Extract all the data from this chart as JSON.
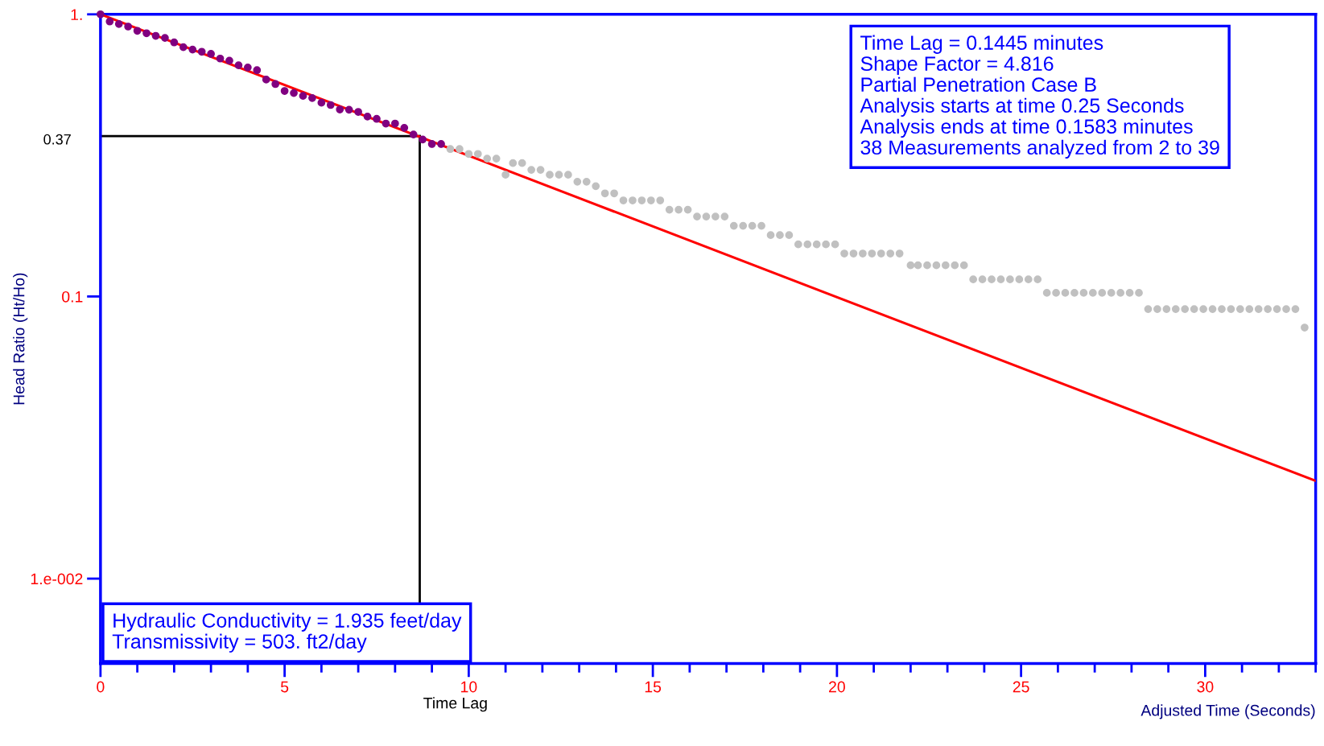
{
  "chart_data": {
    "type": "scatter",
    "xlabel": "Adjusted Time (Seconds)",
    "ylabel": "Head Ratio (Ht/Ho)",
    "log": "y",
    "xlim": [
      0,
      33
    ],
    "ylim": [
      0.005,
      1
    ],
    "xticks": [
      0,
      5,
      10,
      15,
      20,
      25,
      30
    ],
    "yticks": [
      {
        "value": 0.01,
        "label": "1.e-002"
      },
      {
        "value": 0.1,
        "label": "0.1"
      },
      {
        "value": 1,
        "label": "1."
      }
    ],
    "grid": false,
    "marker": "circle",
    "series": [
      {
        "color": "#800080",
        "x": [
          0,
          0.25,
          0.5,
          0.75,
          1,
          1.25,
          1.5,
          1.75,
          2,
          2.25,
          2.5,
          2.75,
          3,
          3.25,
          3.5,
          3.75,
          4,
          4.25,
          4.5,
          4.75,
          5,
          5.25,
          5.5,
          5.75,
          6,
          6.25,
          6.5,
          6.75,
          7,
          7.25,
          7.5,
          7.75,
          8,
          8.25,
          8.5,
          8.75,
          9,
          9.25
        ],
        "values": [
          1.0,
          0.943,
          0.924,
          0.905,
          0.874,
          0.857,
          0.839,
          0.825,
          0.795,
          0.765,
          0.75,
          0.737,
          0.724,
          0.697,
          0.685,
          0.66,
          0.648,
          0.634,
          0.587,
          0.566,
          0.535,
          0.526,
          0.514,
          0.505,
          0.486,
          0.477,
          0.46,
          0.459,
          0.451,
          0.434,
          0.426,
          0.41,
          0.41,
          0.396,
          0.375,
          0.36,
          0.347,
          0.347
        ]
      },
      {
        "color": "#c0c0c0",
        "x": [
          9.5,
          9.75,
          10,
          10.25,
          10.5,
          10.75,
          11,
          11.2,
          11.45,
          11.7,
          11.95,
          12.2,
          12.45,
          12.7,
          12.95,
          13.2,
          13.45,
          13.7,
          13.95,
          14.2,
          14.45,
          14.7,
          14.95,
          15.2,
          15.45,
          15.7,
          15.95,
          16.2,
          16.45,
          16.7,
          16.95,
          17.2,
          17.45,
          17.7,
          17.95,
          18.2,
          18.45,
          18.7,
          18.95,
          19.2,
          19.45,
          19.7,
          19.95,
          20.2,
          20.45,
          20.7,
          20.95,
          21.2,
          21.45,
          21.7,
          22,
          22.2,
          22.45,
          22.7,
          22.95,
          23.2,
          23.45,
          23.7,
          23.95,
          24.2,
          24.45,
          24.7,
          24.95,
          25.2,
          25.45,
          25.7,
          25.95,
          26.2,
          26.45,
          26.7,
          26.95,
          27.2,
          27.45,
          27.7,
          27.95,
          28.2,
          28.45,
          28.7,
          28.95,
          29.2,
          29.45,
          29.7,
          29.95,
          30.2,
          30.45,
          30.7,
          30.95,
          31.2,
          31.45,
          31.7,
          31.95,
          32.2,
          32.45,
          32.7
        ],
        "values": [
          0.333,
          0.333,
          0.32,
          0.32,
          0.308,
          0.308,
          0.27,
          0.297,
          0.297,
          0.281,
          0.281,
          0.27,
          0.27,
          0.27,
          0.255,
          0.255,
          0.246,
          0.232,
          0.232,
          0.219,
          0.219,
          0.219,
          0.219,
          0.219,
          0.203,
          0.203,
          0.203,
          0.192,
          0.192,
          0.192,
          0.192,
          0.178,
          0.178,
          0.178,
          0.178,
          0.165,
          0.165,
          0.165,
          0.153,
          0.153,
          0.153,
          0.153,
          0.153,
          0.142,
          0.142,
          0.142,
          0.142,
          0.142,
          0.142,
          0.142,
          0.129,
          0.129,
          0.129,
          0.129,
          0.129,
          0.129,
          0.129,
          0.115,
          0.115,
          0.115,
          0.115,
          0.115,
          0.115,
          0.115,
          0.115,
          0.103,
          0.103,
          0.103,
          0.103,
          0.103,
          0.103,
          0.103,
          0.103,
          0.103,
          0.103,
          0.103,
          0.0902,
          0.0902,
          0.0902,
          0.0902,
          0.0902,
          0.0902,
          0.0902,
          0.0902,
          0.0902,
          0.0902,
          0.0902,
          0.0902,
          0.0902,
          0.0902,
          0.0902,
          0.0902,
          0.0902,
          0.0776
        ]
      },
      {
        "type": "line",
        "color": "#ff0000",
        "marker": "none",
        "x": [
          0,
          33
        ],
        "values": [
          1,
          0.0222
        ]
      }
    ],
    "ref_lines": [
      {
        "axis": "y",
        "value": 0.37,
        "label": "0.37",
        "color": "#000000"
      },
      {
        "axis": "x",
        "value": 8.67,
        "label": "Time Lag",
        "color": "#000000"
      }
    ],
    "annotations": [
      "Time Lag = 0.1445 minutes\nShape Factor = 4.816\nPartial Penetration Case B\nAnalysis starts at time 0.25 Seconds\nAnalysis ends at time 0.1583 minutes\n38 Measurements analyzed from 2 to 39",
      "Hydraulic Conductivity = 1.935 feet/day\nTransmissivity = 503. ft2/day"
    ]
  }
}
